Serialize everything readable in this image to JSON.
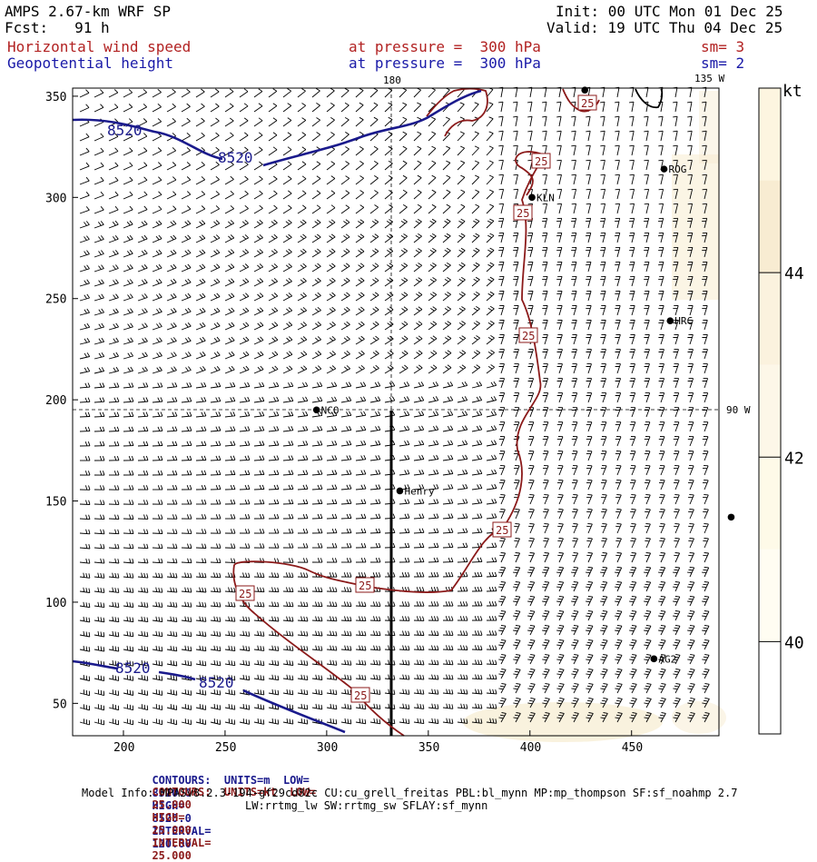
{
  "header": {
    "model": "AMPS 2.67-km WRF SP",
    "fcst": "Fcst:   91 h",
    "init": "Init: 00 UTC Mon 01 Dec 25",
    "valid": "Valid: 19 UTC Thu 04 Dec 25",
    "field1": "Horizontal wind speed",
    "field2": "Geopotential height",
    "press1": "at pressure =  300 hPa",
    "press2": "at pressure =  300 hPa",
    "sm1": "sm= 3",
    "sm2": "sm= 2"
  },
  "map": {
    "lon_labels": {
      "top": "180",
      "top_right": "135 W",
      "right": "90 W"
    },
    "stations": [
      {
        "name": "ROG",
        "x": 466,
        "y": 314
      },
      {
        "name": "KLN",
        "x": 401,
        "y": 300
      },
      {
        "name": "HRC",
        "x": 469,
        "y": 239
      },
      {
        "name": "NCO",
        "x": 295,
        "y": 195
      },
      {
        "name": "Henry",
        "x": 336,
        "y": 155
      },
      {
        "name": "AG2",
        "x": 461,
        "y": 72
      },
      {
        "name": "",
        "x": 499,
        "y": 142
      },
      {
        "name": "",
        "x": 427,
        "y": 353
      }
    ],
    "x_ticks": [
      "200",
      "250",
      "300",
      "350",
      "400",
      "450"
    ],
    "y_ticks": [
      "50",
      "100",
      "150",
      "200",
      "250",
      "300",
      "350"
    ],
    "height_contour_labels": [
      "8520",
      "8520",
      "8520",
      "8520"
    ],
    "speed_contour_labels": [
      "25",
      "25",
      "25",
      "25",
      "25",
      "25",
      "25",
      "25",
      "25"
    ]
  },
  "colorbar": {
    "unit": "kt",
    "labels": [
      "44",
      "42",
      "40"
    ],
    "bands": [
      {
        "from": 45,
        "to": 46,
        "color": "#fdf5e0"
      },
      {
        "from": 44,
        "to": 45,
        "color": "#f8ecd2"
      },
      {
        "from": 43,
        "to": 44,
        "color": "#fbf2de"
      },
      {
        "from": 42,
        "to": 43,
        "color": "#fdf7e8"
      },
      {
        "from": 41,
        "to": 42,
        "color": "#fefae8"
      },
      {
        "from": 40,
        "to": 41,
        "color": "#fffdf2"
      },
      {
        "from": 39,
        "to": 40,
        "color": "#ffffff"
      }
    ]
  },
  "footer": {
    "line1_label": "CONTOURS:  UNITS=m  LOW=",
    "line1_low": "8520.0",
    "line1_high_label": "HIGH=",
    "line1_high": "8520.0",
    "line1_int_label": "INTERVAL=",
    "line1_int": "120.00",
    "line2_label": "CONTOURS:  UNITS=kt  LOW=",
    "line2_low": "25.000",
    "line2_high_label": "HIGH=",
    "line2_high": "25.000",
    "line2_int_label": "INTERVAL=",
    "line2_int": "25.000",
    "model_info": "Model Info: MPASv8.2.3-194-gf29cd82c CU:cu_grell_freitas PBL:bl_mynn MP:mp_thompson SF:sf_noahmp 2.7",
    "model_info2": "LW:rrtmg_lw SW:rrtmg_sw SFLAY:sf_mynn"
  },
  "colors": {
    "height_contour": "#1a1a8c",
    "speed_contour": "#8b1a1a",
    "barb": "#000000",
    "shade_light": "#f7ecd0"
  }
}
